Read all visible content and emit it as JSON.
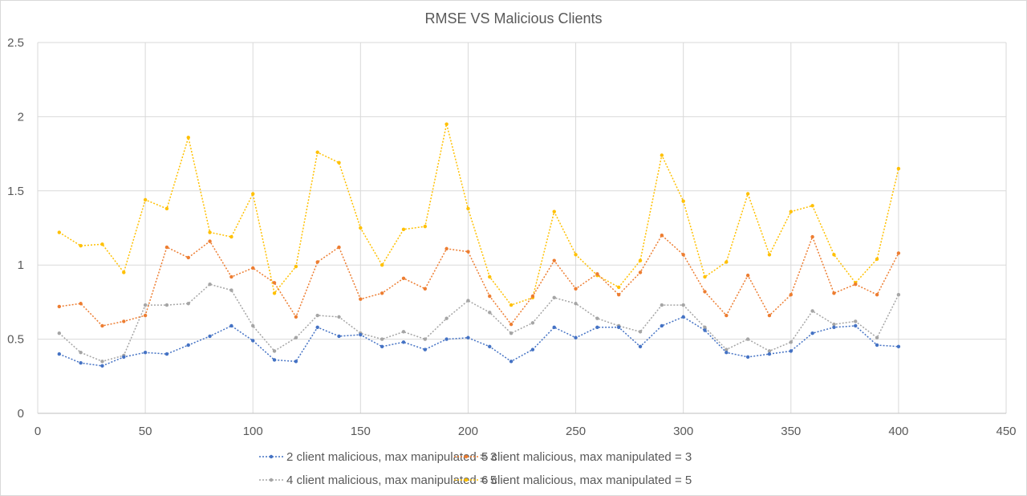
{
  "chart_data": {
    "type": "line",
    "title": "RMSE VS Malicious Clients",
    "xlabel": "",
    "ylabel": "",
    "xlim": [
      0,
      450
    ],
    "ylim": [
      0,
      2.5
    ],
    "x_ticks": [
      "0",
      "50",
      "100",
      "150",
      "200",
      "250",
      "300",
      "350",
      "400",
      "450"
    ],
    "y_ticks": [
      "0",
      "0.5",
      "1",
      "1.5",
      "2",
      "2.5"
    ],
    "grid": "both",
    "legend_position": "bottom",
    "x": [
      10,
      20,
      30,
      40,
      50,
      60,
      70,
      80,
      90,
      100,
      110,
      120,
      130,
      140,
      150,
      160,
      170,
      180,
      190,
      200,
      210,
      220,
      230,
      240,
      250,
      260,
      270,
      280,
      290,
      300,
      310,
      320,
      330,
      340,
      350,
      360,
      370,
      380,
      390,
      400
    ],
    "series": [
      {
        "name": "2 client malicious, max manipulated = 3",
        "color": "#4472C4",
        "values": [
          0.4,
          0.34,
          0.32,
          0.38,
          0.41,
          0.4,
          0.46,
          0.52,
          0.59,
          0.49,
          0.36,
          0.35,
          0.58,
          0.52,
          0.53,
          0.45,
          0.48,
          0.43,
          0.5,
          0.51,
          0.45,
          0.35,
          0.43,
          0.58,
          0.51,
          0.58,
          0.58,
          0.45,
          0.59,
          0.65,
          0.56,
          0.41,
          0.38,
          0.4,
          0.42,
          0.54,
          0.58,
          0.59,
          0.46,
          0.45
        ]
      },
      {
        "name": "5 client malicious, max manipulated = 3",
        "color": "#ED7D31",
        "values": [
          0.72,
          0.74,
          0.59,
          0.62,
          0.66,
          1.12,
          1.05,
          1.16,
          0.92,
          0.98,
          0.88,
          0.65,
          1.02,
          1.12,
          0.77,
          0.81,
          0.91,
          0.84,
          1.11,
          1.09,
          0.79,
          0.6,
          0.79,
          1.03,
          0.84,
          0.94,
          0.8,
          0.95,
          1.2,
          1.07,
          0.82,
          0.66,
          0.93,
          0.66,
          0.8,
          1.19,
          0.81,
          0.87,
          0.8,
          1.08
        ]
      },
      {
        "name": "4 client malicious, max manipulated = 5",
        "color": "#A5A5A5",
        "values": [
          0.54,
          0.41,
          0.35,
          0.39,
          0.73,
          0.73,
          0.74,
          0.87,
          0.83,
          0.59,
          0.42,
          0.51,
          0.66,
          0.65,
          0.54,
          0.5,
          0.55,
          0.5,
          0.64,
          0.76,
          0.68,
          0.54,
          0.61,
          0.78,
          0.74,
          0.64,
          0.59,
          0.55,
          0.73,
          0.73,
          0.58,
          0.43,
          0.5,
          0.42,
          0.48,
          0.69,
          0.6,
          0.62,
          0.51,
          0.8
        ]
      },
      {
        "name": "6 client malicious, max manipulated = 5",
        "color": "#FFC000",
        "values": [
          1.22,
          1.13,
          1.14,
          0.95,
          1.44,
          1.38,
          1.86,
          1.22,
          1.19,
          1.48,
          0.81,
          0.99,
          1.76,
          1.69,
          1.25,
          1.0,
          1.24,
          1.26,
          1.95,
          1.38,
          0.92,
          0.73,
          0.78,
          1.36,
          1.07,
          0.93,
          0.85,
          1.03,
          1.74,
          1.43,
          0.92,
          1.02,
          1.48,
          1.07,
          1.36,
          1.4,
          1.07,
          0.88,
          1.04,
          1.65
        ]
      }
    ]
  }
}
